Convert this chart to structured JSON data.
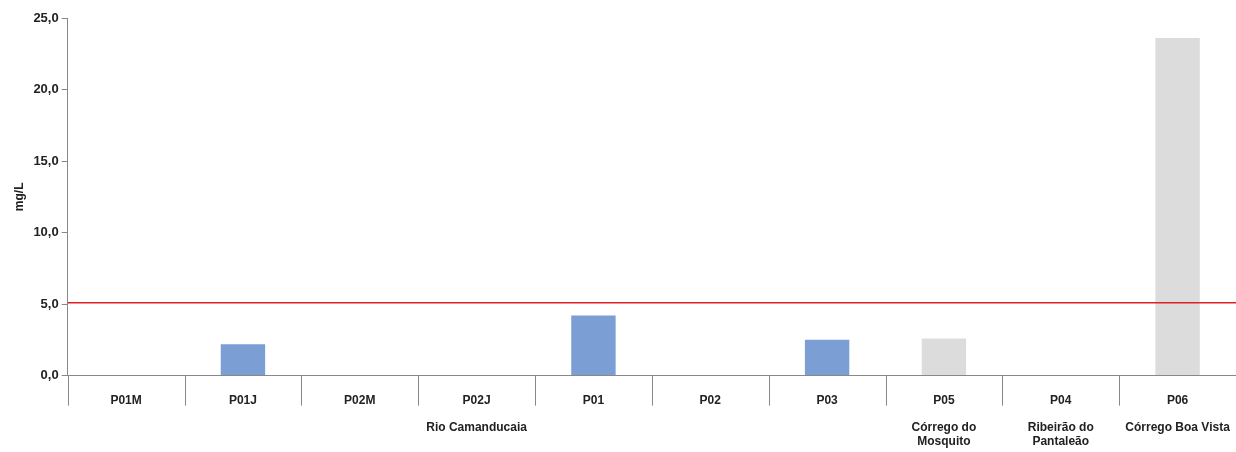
{
  "chart_data": {
    "type": "bar",
    "ylabel": "mg/L",
    "categories": [
      "P01M",
      "P01J",
      "P02M",
      "P02J",
      "P01",
      "P02",
      "P03",
      "P05",
      "P04",
      "P06"
    ],
    "values": [
      null,
      2.2,
      null,
      null,
      4.2,
      null,
      2.5,
      2.6,
      null,
      23.6
    ],
    "colors": [
      "#7b9fd4",
      "#7b9fd4",
      "#7b9fd4",
      "#7b9fd4",
      "#7b9fd4",
      "#7b9fd4",
      "#7b9fd4",
      "#dcdcdc",
      "#dcdcdc",
      "#dcdcdc"
    ],
    "ylim": [
      0,
      25
    ],
    "yticks": [
      {
        "value": 0,
        "label": "0,0"
      },
      {
        "value": 5,
        "label": "5,0"
      },
      {
        "value": 10,
        "label": "10,0"
      },
      {
        "value": 15,
        "label": "15,0"
      },
      {
        "value": 20,
        "label": "20,0"
      },
      {
        "value": 25,
        "label": "25,0"
      }
    ],
    "ref_lines": [
      {
        "axis": "y",
        "value": 5.1,
        "color": "#e02020"
      }
    ],
    "annotations": [
      "Rio Camanducaia",
      "Córrego do Mosquito",
      "Ribeirão do Pantaleão",
      "Córrego Boa Vista"
    ],
    "grid": false,
    "legend": false
  }
}
